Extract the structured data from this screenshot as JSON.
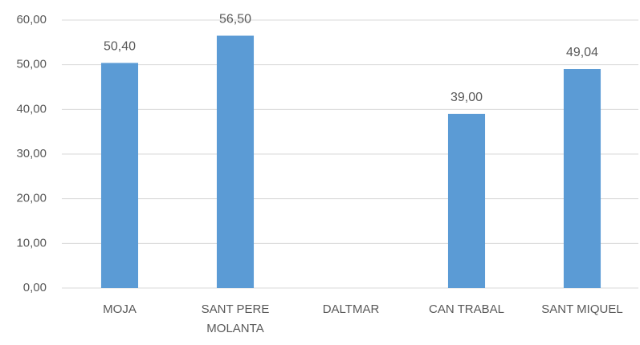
{
  "chart_data": {
    "type": "bar",
    "categories": [
      "MOJA",
      "SANT PERE MOLANTA",
      "DALTMAR",
      "CAN TRABAL",
      "SANT MIQUEL"
    ],
    "values": [
      50.4,
      56.5,
      null,
      39.0,
      49.04
    ],
    "value_labels": [
      "50,40",
      "56,50",
      null,
      "39,00",
      "49,04"
    ],
    "color": "#5b9bd5",
    "ylim": [
      0,
      60
    ],
    "yticks": [
      {
        "value": 0,
        "label": "0,00"
      },
      {
        "value": 10,
        "label": "10,00"
      },
      {
        "value": 20,
        "label": "20,00"
      },
      {
        "value": 30,
        "label": "30,00"
      },
      {
        "value": 40,
        "label": "40,00"
      },
      {
        "value": 50,
        "label": "50,00"
      },
      {
        "value": 60,
        "label": "60,00"
      }
    ],
    "grid": true
  }
}
